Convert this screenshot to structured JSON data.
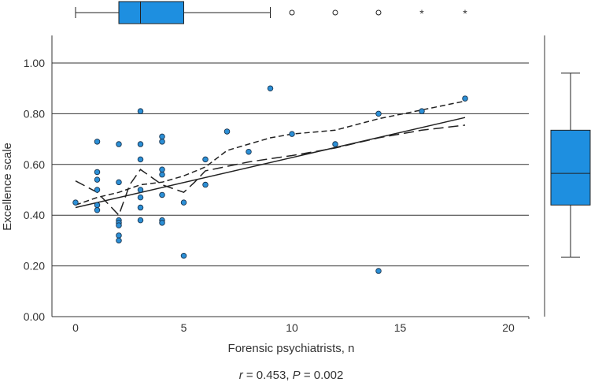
{
  "chart_data": {
    "type": "scatter",
    "xlabel": "Forensic psychiatrists, n",
    "ylabel": "Excellence scale",
    "xlim": [
      -1,
      21
    ],
    "ylim": [
      0,
      1.12
    ],
    "x_ticks": [
      "0",
      "5",
      "10",
      "15",
      "20"
    ],
    "x_tick_values": [
      0,
      5,
      10,
      15,
      20
    ],
    "y_ticks": [
      "0.00",
      "0.20",
      "0.40",
      "0.60",
      "0.80",
      "1.00"
    ],
    "y_tick_values": [
      0,
      0.2,
      0.4,
      0.6,
      0.8,
      1.0
    ],
    "grid": "horizontal",
    "caption_r": "r",
    "caption_rest": " = 0.453, ",
    "caption_p": "P",
    "caption_end": " = 0.002",
    "marker_color": "#2b8fd6",
    "points": [
      {
        "x": 0,
        "y": 0.45
      },
      {
        "x": 1,
        "y": 0.69
      },
      {
        "x": 1,
        "y": 0.57
      },
      {
        "x": 1,
        "y": 0.54
      },
      {
        "x": 1,
        "y": 0.5
      },
      {
        "x": 1,
        "y": 0.44
      },
      {
        "x": 1,
        "y": 0.42
      },
      {
        "x": 2,
        "y": 0.68
      },
      {
        "x": 2,
        "y": 0.53
      },
      {
        "x": 2,
        "y": 0.38
      },
      {
        "x": 2,
        "y": 0.37
      },
      {
        "x": 2,
        "y": 0.36
      },
      {
        "x": 2,
        "y": 0.32
      },
      {
        "x": 2,
        "y": 0.3
      },
      {
        "x": 3,
        "y": 0.81
      },
      {
        "x": 3,
        "y": 0.68
      },
      {
        "x": 3,
        "y": 0.62
      },
      {
        "x": 3,
        "y": 0.5
      },
      {
        "x": 3,
        "y": 0.47
      },
      {
        "x": 3,
        "y": 0.43
      },
      {
        "x": 3,
        "y": 0.38
      },
      {
        "x": 4,
        "y": 0.71
      },
      {
        "x": 4,
        "y": 0.69
      },
      {
        "x": 4,
        "y": 0.58
      },
      {
        "x": 4,
        "y": 0.56
      },
      {
        "x": 4,
        "y": 0.48
      },
      {
        "x": 4,
        "y": 0.38
      },
      {
        "x": 4,
        "y": 0.37
      },
      {
        "x": 5,
        "y": 0.45
      },
      {
        "x": 5,
        "y": 0.24
      },
      {
        "x": 6,
        "y": 0.62
      },
      {
        "x": 6,
        "y": 0.52
      },
      {
        "x": 7,
        "y": 0.73
      },
      {
        "x": 8,
        "y": 0.65
      },
      {
        "x": 9,
        "y": 0.9
      },
      {
        "x": 10,
        "y": 0.72
      },
      {
        "x": 12,
        "y": 0.68
      },
      {
        "x": 14,
        "y": 0.8
      },
      {
        "x": 14,
        "y": 0.18
      },
      {
        "x": 16,
        "y": 0.81
      },
      {
        "x": 18,
        "y": 0.86
      }
    ],
    "fit_lines": [
      {
        "style": "solid",
        "points": [
          [
            0,
            0.43
          ],
          [
            18,
            0.785
          ]
        ]
      },
      {
        "style": "short-dash",
        "points": [
          [
            0,
            0.44
          ],
          [
            1,
            0.47
          ],
          [
            2,
            0.49
          ],
          [
            3,
            0.52
          ],
          [
            4,
            0.53
          ],
          [
            5,
            0.555
          ],
          [
            6,
            0.59
          ],
          [
            7,
            0.655
          ],
          [
            8,
            0.68
          ],
          [
            9,
            0.705
          ],
          [
            10,
            0.72
          ],
          [
            12,
            0.735
          ],
          [
            14,
            0.78
          ],
          [
            16,
            0.815
          ],
          [
            18,
            0.85
          ]
        ]
      },
      {
        "style": "long-dash",
        "points": [
          [
            0,
            0.535
          ],
          [
            1,
            0.49
          ],
          [
            1.5,
            0.445
          ],
          [
            2,
            0.4
          ],
          [
            2.5,
            0.52
          ],
          [
            3,
            0.58
          ],
          [
            3.5,
            0.55
          ],
          [
            4,
            0.52
          ],
          [
            5,
            0.49
          ],
          [
            5.5,
            0.53
          ],
          [
            6,
            0.575
          ],
          [
            8,
            0.61
          ],
          [
            10,
            0.635
          ],
          [
            12,
            0.665
          ],
          [
            14,
            0.705
          ],
          [
            16,
            0.735
          ],
          [
            18,
            0.755
          ]
        ]
      }
    ],
    "x_boxplot": {
      "whisker_low": 0,
      "q1": 2,
      "median": 3,
      "q3": 5,
      "whisker_high": 9,
      "outliers": [
        10,
        12,
        14
      ],
      "extremes": [
        16,
        18
      ],
      "extreme_symbol": "*"
    },
    "y_boxplot": {
      "whisker_low": 0.235,
      "q1": 0.44,
      "median": 0.565,
      "q3": 0.735,
      "whisker_high": 0.96
    },
    "box_color": "#1e8fe0"
  }
}
